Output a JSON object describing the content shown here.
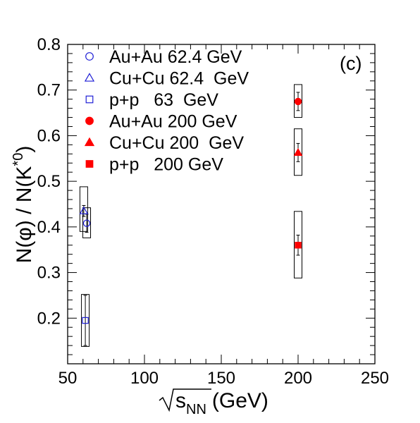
{
  "chart_data": {
    "type": "scatter",
    "panel_label": "(c)",
    "xlabel_prefix": "s",
    "xlabel_sub": "NN",
    "xlabel_unit": "(GeV)",
    "ylabel_main": "N(φ) / N(K",
    "ylabel_sup": "*0",
    "ylabel_close": ")",
    "xlim": [
      50,
      250
    ],
    "ylim": [
      0.1,
      0.8
    ],
    "xticks": [
      50,
      100,
      150,
      200,
      250
    ],
    "xtick_labels": [
      "50",
      "100",
      "150",
      "200",
      "250"
    ],
    "yticks": [
      0.2,
      0.3,
      0.4,
      0.5,
      0.6,
      0.7,
      0.8
    ],
    "ytick_labels": [
      "0.2",
      "0.3",
      "0.4",
      "0.5",
      "0.6",
      "0.7",
      "0.8"
    ],
    "legend_position": "top-left",
    "series": [
      {
        "name": "Au+Au 62.4 GeV",
        "marker": "circle-open",
        "color": "#1f1fd6",
        "points": [
          {
            "x": 62.4,
            "y": 0.408,
            "stat": 0.02,
            "sys_low": 0.376,
            "sys_high": 0.442
          }
        ]
      },
      {
        "name": "Cu+Cu 62.4  GeV",
        "marker": "triangle-open",
        "color": "#1f1fd6",
        "points": [
          {
            "x": 60.5,
            "y": 0.435,
            "stat": 0.012,
            "sys_low": 0.39,
            "sys_high": 0.488
          }
        ]
      },
      {
        "name": "p+p   63  GeV",
        "marker": "square-open",
        "color": "#1f1fd6",
        "points": [
          {
            "x": 61.5,
            "y": 0.195,
            "stat": 0.055,
            "sys_low": 0.138,
            "sys_high": 0.252
          }
        ]
      },
      {
        "name": "Au+Au 200 GeV",
        "marker": "circle-filled",
        "color": "#ff0000",
        "points": [
          {
            "x": 200,
            "y": 0.675,
            "stat": 0.02,
            "sys_low": 0.64,
            "sys_high": 0.712
          }
        ]
      },
      {
        "name": "Cu+Cu 200  GeV",
        "marker": "triangle-filled",
        "color": "#ff0000",
        "points": [
          {
            "x": 200,
            "y": 0.563,
            "stat": 0.02,
            "sys_low": 0.513,
            "sys_high": 0.615
          }
        ]
      },
      {
        "name": "p+p   200 GeV",
        "marker": "square-filled",
        "color": "#ff0000",
        "points": [
          {
            "x": 200,
            "y": 0.36,
            "stat": 0.022,
            "sys_low": 0.288,
            "sys_high": 0.434
          }
        ]
      }
    ]
  }
}
